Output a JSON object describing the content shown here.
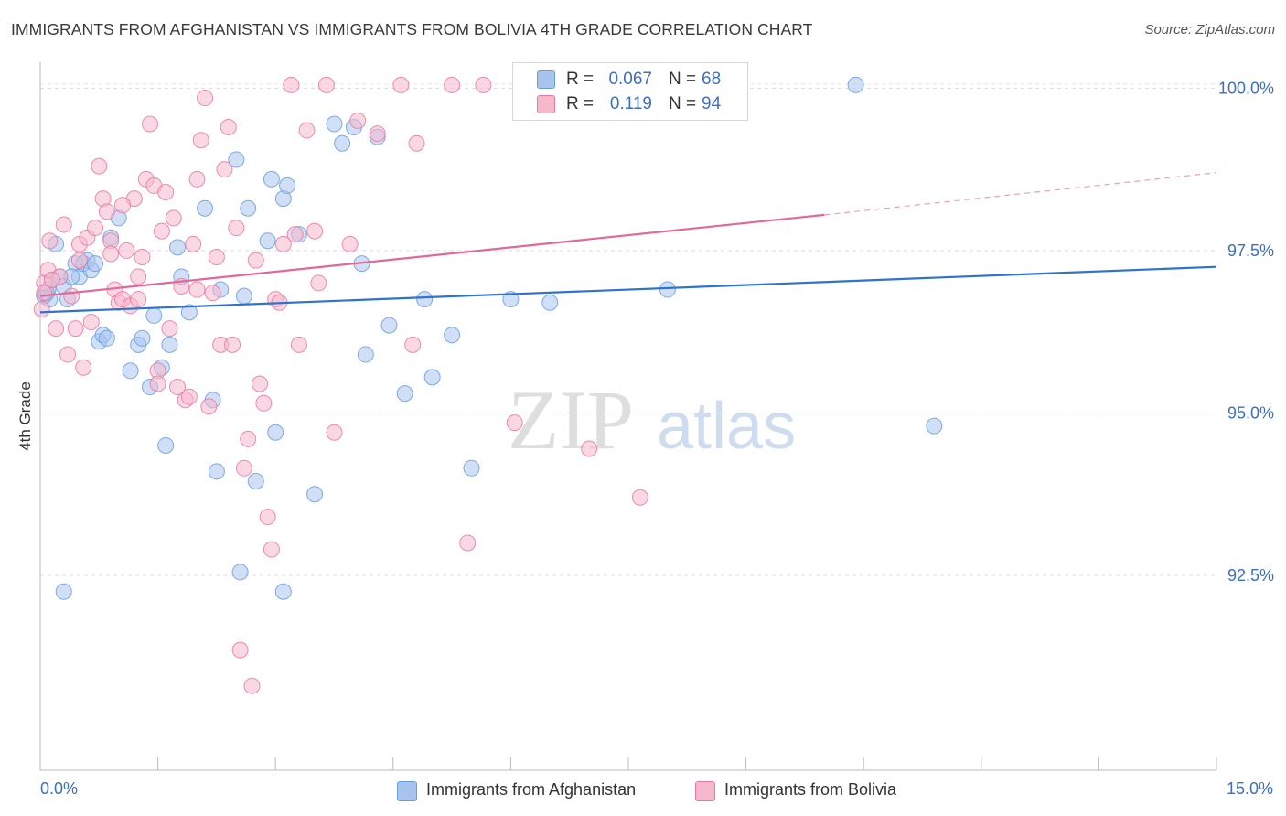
{
  "title": "IMMIGRANTS FROM AFGHANISTAN VS IMMIGRANTS FROM BOLIVIA 4TH GRADE CORRELATION CHART",
  "source": "Source: ZipAtlas.com",
  "watermark": {
    "zip": "ZIP",
    "atlas": "atlas"
  },
  "legend_top": [
    {
      "r_label": "R =",
      "r_value": "0.067",
      "n_label": "N =",
      "n_value": "68",
      "color": "#a9c4ec"
    },
    {
      "r_label": "R =",
      "r_value": "0.119",
      "n_label": "N =",
      "n_value": "94",
      "color": "#f5b8cc"
    }
  ],
  "chart_data": {
    "type": "scatter",
    "title": "IMMIGRANTS FROM AFGHANISTAN VS IMMIGRANTS FROM BOLIVIA 4TH GRADE CORRELATION CHART",
    "xlabel": "",
    "ylabel": "4th Grade",
    "xlim": [
      0,
      15
    ],
    "ylim": [
      89.5,
      100.4
    ],
    "x_tick_labels": [
      "0.0%",
      "15.0%"
    ],
    "y_ticks": [
      92.5,
      95.0,
      97.5,
      100.0
    ],
    "y_tick_labels": [
      "92.5%",
      "95.0%",
      "97.5%",
      "100.0%"
    ],
    "grid": true,
    "legend_position": "bottom",
    "series": [
      {
        "name": "Immigrants from Afghanistan",
        "color": "#6a9de0",
        "fill": "#a9c4ec",
        "trend": {
          "x": [
            0,
            15
          ],
          "y": [
            96.55,
            97.25
          ]
        },
        "points": [
          [
            0.05,
            96.8
          ],
          [
            0.1,
            96.9
          ],
          [
            0.15,
            97.05
          ],
          [
            0.12,
            96.75
          ],
          [
            0.2,
            97.6
          ],
          [
            0.25,
            97.1
          ],
          [
            0.3,
            96.95
          ],
          [
            0.35,
            96.75
          ],
          [
            0.45,
            97.3
          ],
          [
            0.5,
            97.1
          ],
          [
            0.55,
            97.3
          ],
          [
            0.6,
            97.35
          ],
          [
            0.65,
            97.2
          ],
          [
            0.75,
            96.1
          ],
          [
            0.8,
            96.2
          ],
          [
            0.85,
            96.15
          ],
          [
            0.9,
            97.7
          ],
          [
            1.0,
            98.0
          ],
          [
            1.15,
            95.65
          ],
          [
            1.25,
            96.05
          ],
          [
            1.3,
            96.15
          ],
          [
            1.4,
            95.4
          ],
          [
            1.45,
            96.5
          ],
          [
            1.55,
            95.7
          ],
          [
            1.6,
            94.5
          ],
          [
            1.65,
            96.05
          ],
          [
            1.75,
            97.55
          ],
          [
            1.8,
            97.1
          ],
          [
            1.9,
            96.55
          ],
          [
            2.1,
            98.15
          ],
          [
            2.2,
            95.2
          ],
          [
            2.25,
            94.1
          ],
          [
            2.3,
            96.9
          ],
          [
            2.5,
            98.9
          ],
          [
            2.55,
            92.55
          ],
          [
            2.6,
            96.8
          ],
          [
            2.65,
            98.15
          ],
          [
            2.75,
            93.95
          ],
          [
            2.9,
            97.65
          ],
          [
            2.95,
            98.6
          ],
          [
            3.0,
            94.7
          ],
          [
            3.1,
            98.3
          ],
          [
            3.15,
            98.5
          ],
          [
            3.3,
            97.75
          ],
          [
            3.5,
            93.75
          ],
          [
            3.75,
            99.45
          ],
          [
            3.85,
            99.15
          ],
          [
            4.0,
            99.4
          ],
          [
            4.1,
            97.3
          ],
          [
            4.15,
            95.9
          ],
          [
            4.3,
            99.25
          ],
          [
            4.45,
            96.35
          ],
          [
            4.65,
            95.3
          ],
          [
            4.9,
            96.75
          ],
          [
            5.0,
            95.55
          ],
          [
            5.25,
            96.2
          ],
          [
            5.5,
            94.15
          ],
          [
            6.0,
            96.75
          ],
          [
            6.5,
            96.7
          ],
          [
            7.05,
            100.05
          ],
          [
            8.0,
            96.9
          ],
          [
            10.4,
            100.05
          ],
          [
            11.4,
            94.8
          ],
          [
            0.3,
            92.25
          ],
          [
            3.1,
            92.25
          ],
          [
            0.08,
            96.85
          ],
          [
            0.4,
            97.1
          ],
          [
            0.7,
            97.3
          ]
        ]
      },
      {
        "name": "Immigrants from Bolivia",
        "color": "#e87aa0",
        "fill": "#f5b8cc",
        "trend": {
          "x": [
            0,
            10
          ],
          "y": [
            96.8,
            98.05
          ],
          "dashed_to": {
            "x": 15,
            "y": 98.7
          }
        },
        "points": [
          [
            0.02,
            96.6
          ],
          [
            0.05,
            97.0
          ],
          [
            0.1,
            97.2
          ],
          [
            0.12,
            97.65
          ],
          [
            0.2,
            96.3
          ],
          [
            0.25,
            97.1
          ],
          [
            0.3,
            97.9
          ],
          [
            0.35,
            95.9
          ],
          [
            0.4,
            96.8
          ],
          [
            0.45,
            96.3
          ],
          [
            0.5,
            97.6
          ],
          [
            0.55,
            95.7
          ],
          [
            0.6,
            97.7
          ],
          [
            0.65,
            96.4
          ],
          [
            0.7,
            97.85
          ],
          [
            0.75,
            98.8
          ],
          [
            0.8,
            98.3
          ],
          [
            0.85,
            98.1
          ],
          [
            0.9,
            97.65
          ],
          [
            0.95,
            96.9
          ],
          [
            1.0,
            96.7
          ],
          [
            1.05,
            96.75
          ],
          [
            1.1,
            97.5
          ],
          [
            1.15,
            96.65
          ],
          [
            1.2,
            98.3
          ],
          [
            1.25,
            97.1
          ],
          [
            1.3,
            97.4
          ],
          [
            1.35,
            98.6
          ],
          [
            1.4,
            99.45
          ],
          [
            1.45,
            98.5
          ],
          [
            1.5,
            95.65
          ],
          [
            1.55,
            97.8
          ],
          [
            1.6,
            98.4
          ],
          [
            1.65,
            96.3
          ],
          [
            1.7,
            98.0
          ],
          [
            1.75,
            95.4
          ],
          [
            1.8,
            96.95
          ],
          [
            1.85,
            95.2
          ],
          [
            1.9,
            95.25
          ],
          [
            1.95,
            97.6
          ],
          [
            2.0,
            98.6
          ],
          [
            2.05,
            99.2
          ],
          [
            2.1,
            99.85
          ],
          [
            2.15,
            95.1
          ],
          [
            2.2,
            96.85
          ],
          [
            2.25,
            97.4
          ],
          [
            2.3,
            96.05
          ],
          [
            2.35,
            98.75
          ],
          [
            2.4,
            99.4
          ],
          [
            2.45,
            96.05
          ],
          [
            2.5,
            97.85
          ],
          [
            2.55,
            91.35
          ],
          [
            2.6,
            94.15
          ],
          [
            2.65,
            94.6
          ],
          [
            2.7,
            90.8
          ],
          [
            2.75,
            97.35
          ],
          [
            2.8,
            95.45
          ],
          [
            2.85,
            95.15
          ],
          [
            2.9,
            93.4
          ],
          [
            2.95,
            92.9
          ],
          [
            3.0,
            96.75
          ],
          [
            3.05,
            96.7
          ],
          [
            3.1,
            97.6
          ],
          [
            3.2,
            100.05
          ],
          [
            3.3,
            96.05
          ],
          [
            3.4,
            99.35
          ],
          [
            3.5,
            97.8
          ],
          [
            3.55,
            97.0
          ],
          [
            3.65,
            100.05
          ],
          [
            3.75,
            94.7
          ],
          [
            3.95,
            97.6
          ],
          [
            4.05,
            99.5
          ],
          [
            4.3,
            99.3
          ],
          [
            4.6,
            100.05
          ],
          [
            4.75,
            96.05
          ],
          [
            4.8,
            99.15
          ],
          [
            5.25,
            100.05
          ],
          [
            5.45,
            93.0
          ],
          [
            5.65,
            100.05
          ],
          [
            6.05,
            94.85
          ],
          [
            6.5,
            100.05
          ],
          [
            7.0,
            94.45
          ],
          [
            7.55,
            100.05
          ],
          [
            7.65,
            93.7
          ],
          [
            8.75,
            100.05
          ],
          [
            0.05,
            96.85
          ],
          [
            0.15,
            97.05
          ],
          [
            0.5,
            97.35
          ],
          [
            0.9,
            97.45
          ],
          [
            1.05,
            98.2
          ],
          [
            1.25,
            96.75
          ],
          [
            1.5,
            95.45
          ],
          [
            2.0,
            96.9
          ],
          [
            3.25,
            97.75
          ]
        ]
      }
    ]
  },
  "legend_bottom": [
    {
      "label": "Immigrants from Afghanistan",
      "color": "#a9c4ec"
    },
    {
      "label": "Immigrants from Bolivia",
      "color": "#f5b8cc"
    }
  ]
}
